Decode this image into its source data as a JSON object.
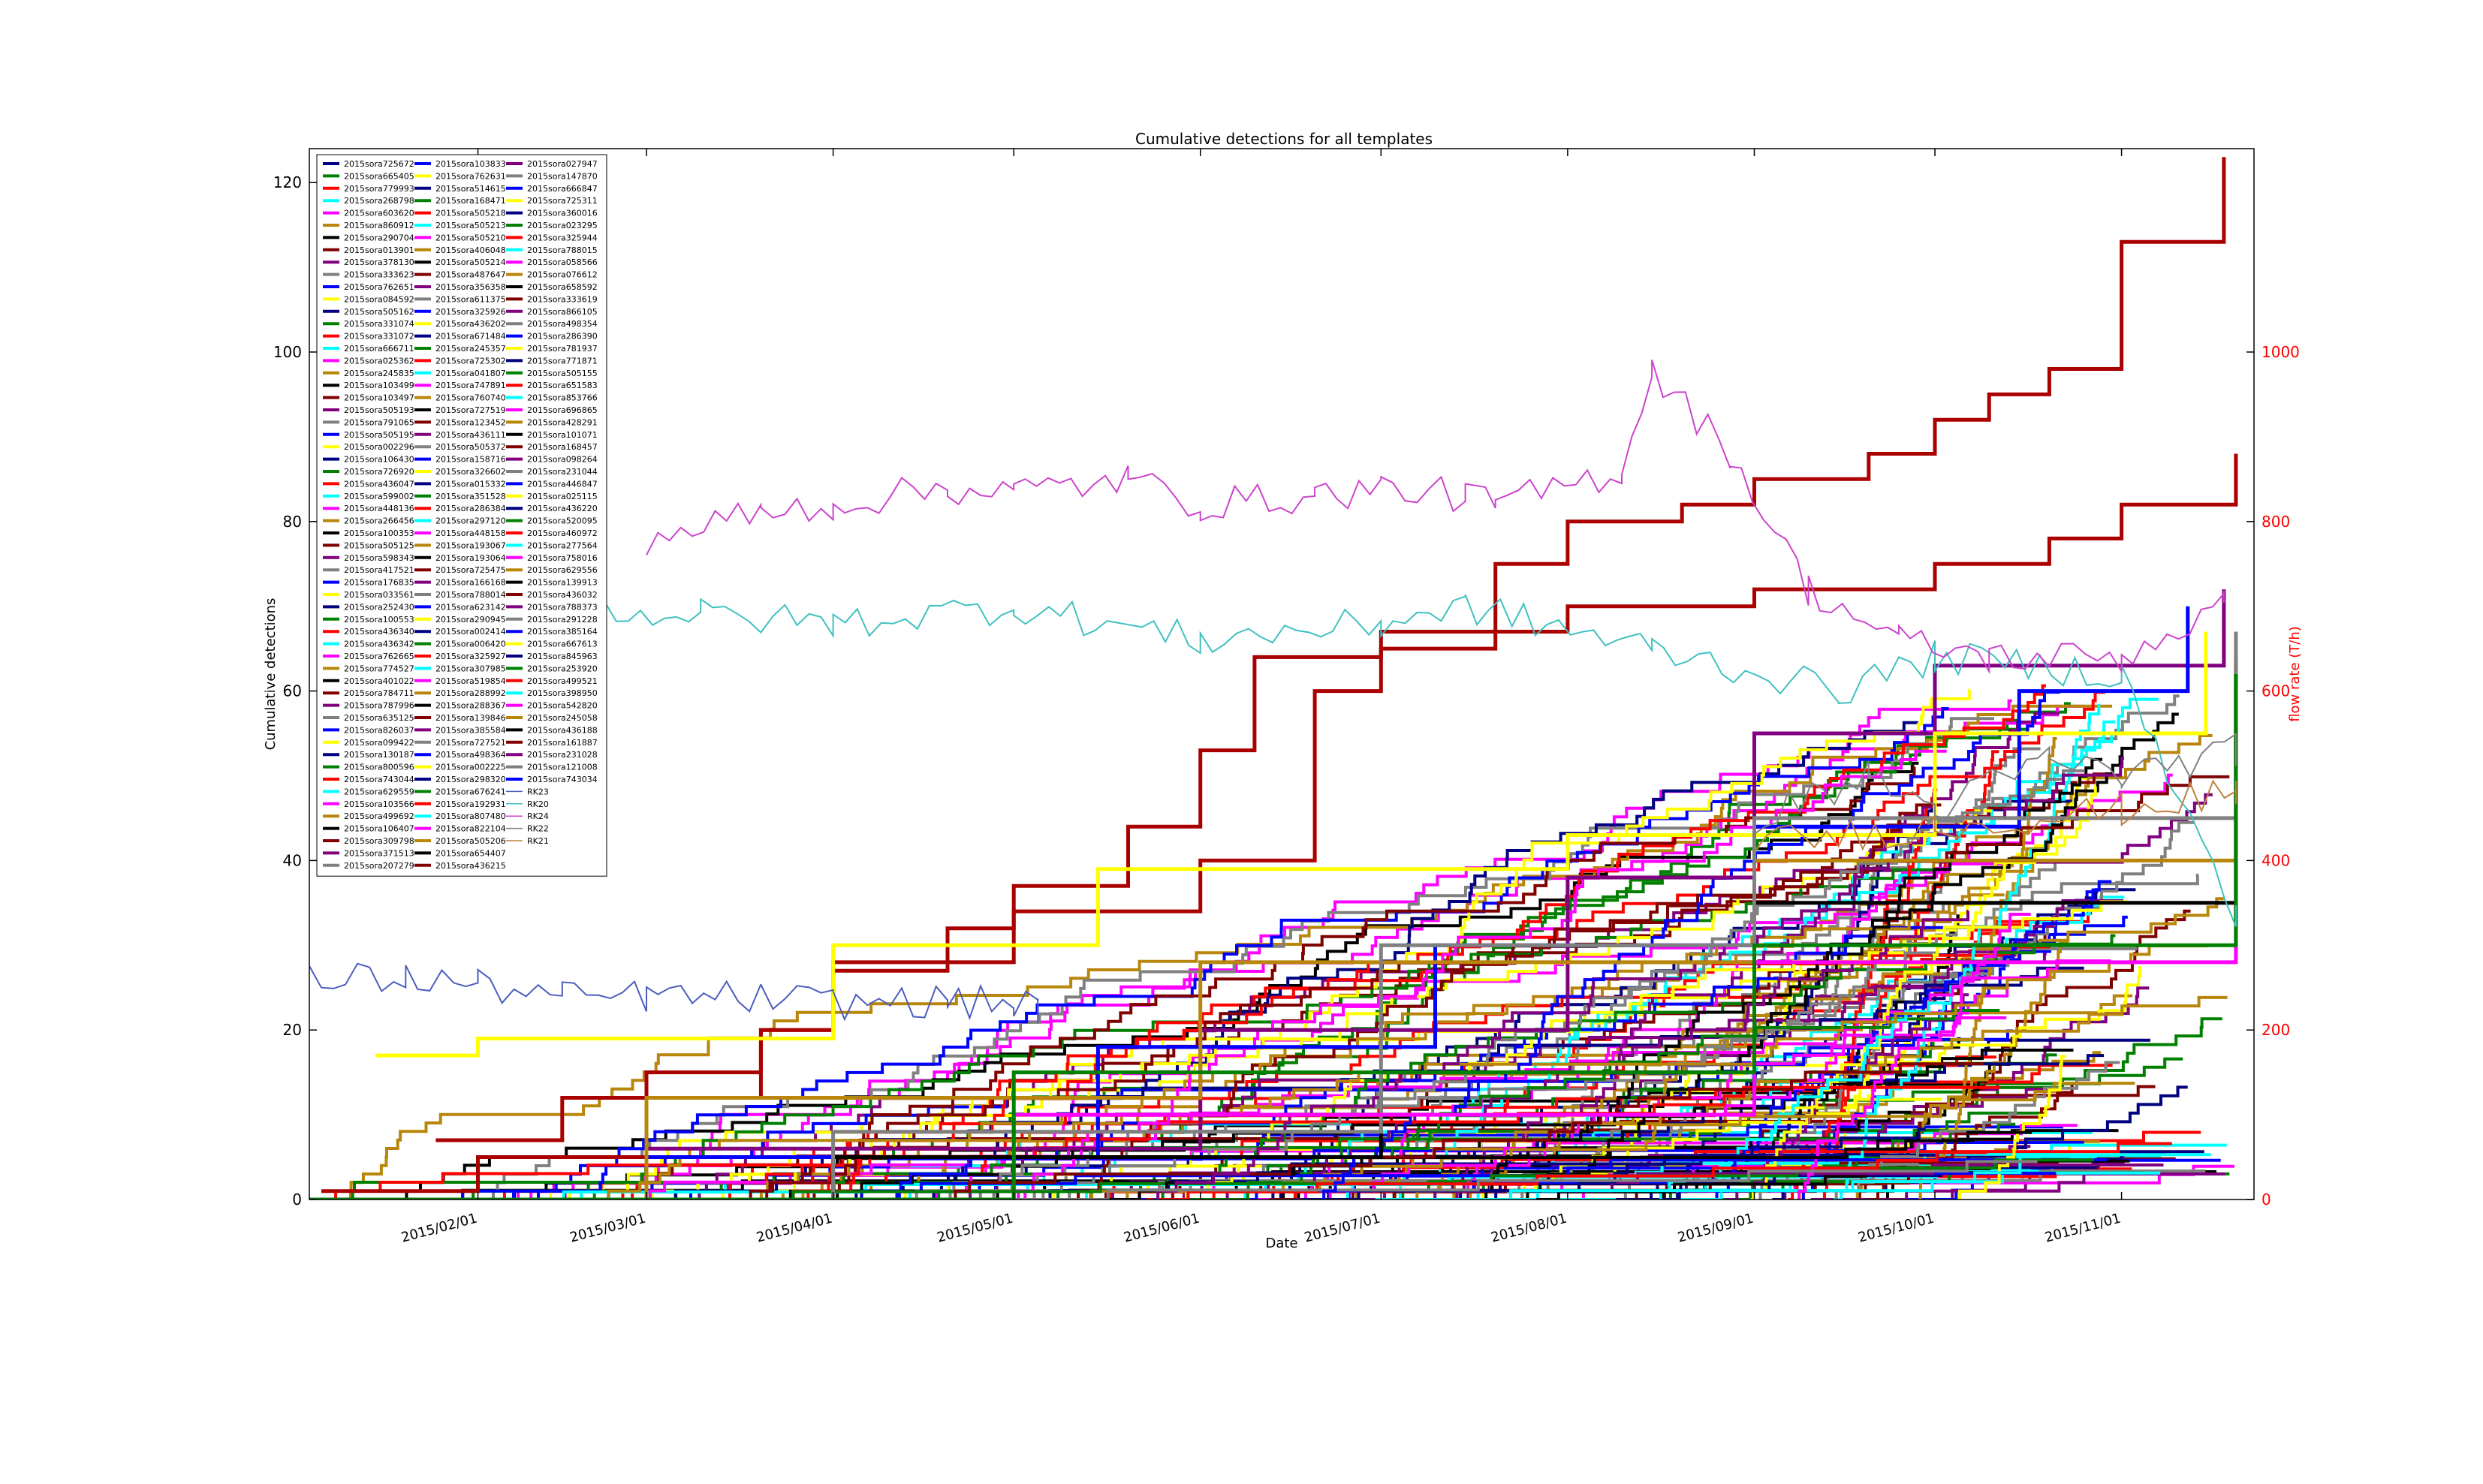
{
  "chart_data": {
    "type": "line",
    "title": "Cumulative detections for all templates",
    "xlabel": "Date",
    "ylabel": "Cumulative detections",
    "ylabel_right": "flow rate (T/h)",
    "x_range": [
      "2015-01-04",
      "2015-11-23"
    ],
    "ylim": [
      0,
      124
    ],
    "ylim_right": [
      0,
      1240
    ],
    "x_ticks": [
      "2015/02/01",
      "2015/03/01",
      "2015/04/01",
      "2015/05/01",
      "2015/06/01",
      "2015/07/01",
      "2015/08/01",
      "2015/09/01",
      "2015/10/01",
      "2015/11/01"
    ],
    "y_ticks": [
      0,
      20,
      40,
      60,
      80,
      100,
      120
    ],
    "y_ticks_right": [
      0,
      200,
      400,
      600,
      800,
      1000
    ],
    "grid": false,
    "legend_position": "top-left",
    "palette": [
      "#000080",
      "#008000",
      "#ff0000",
      "#00ffff",
      "#ff00ff",
      "#b8860b",
      "#000000",
      "#800000",
      "#800080",
      "#808080",
      "#0000ff",
      "#ffff00"
    ],
    "templates": [
      "2015sora725672",
      "2015sora665405",
      "2015sora779993",
      "2015sora268798",
      "2015sora603620",
      "2015sora860912",
      "2015sora290704",
      "2015sora013901",
      "2015sora378130",
      "2015sora333623",
      "2015sora762651",
      "2015sora084592",
      "2015sora505162",
      "2015sora331074",
      "2015sora331072",
      "2015sora666711",
      "2015sora025362",
      "2015sora245835",
      "2015sora103499",
      "2015sora103497",
      "2015sora505193",
      "2015sora791065",
      "2015sora505195",
      "2015sora002296",
      "2015sora106430",
      "2015sora726920",
      "2015sora436047",
      "2015sora599002",
      "2015sora448136",
      "2015sora266456",
      "2015sora100353",
      "2015sora505125",
      "2015sora598343",
      "2015sora417521",
      "2015sora176835",
      "2015sora033561",
      "2015sora252430",
      "2015sora100553",
      "2015sora436340",
      "2015sora436342",
      "2015sora762665",
      "2015sora774527",
      "2015sora401022",
      "2015sora784711",
      "2015sora787996",
      "2015sora635125",
      "2015sora826037",
      "2015sora099422",
      "2015sora130187",
      "2015sora800596",
      "2015sora743044",
      "2015sora629559",
      "2015sora103566",
      "2015sora499692",
      "2015sora106407",
      "2015sora309798",
      "2015sora371513",
      "2015sora207279",
      "2015sora103833",
      "2015sora762631",
      "2015sora514615",
      "2015sora168471",
      "2015sora505218",
      "2015sora505213",
      "2015sora505210",
      "2015sora406048",
      "2015sora505214",
      "2015sora487647",
      "2015sora356358",
      "2015sora611375",
      "2015sora325926",
      "2015sora436202",
      "2015sora671484",
      "2015sora245357",
      "2015sora725302",
      "2015sora041807",
      "2015sora747891",
      "2015sora760740",
      "2015sora727519",
      "2015sora123452",
      "2015sora436111",
      "2015sora505372",
      "2015sora158716",
      "2015sora326602",
      "2015sora015332",
      "2015sora351528",
      "2015sora286384",
      "2015sora297120",
      "2015sora448158",
      "2015sora193067",
      "2015sora193064",
      "2015sora725475",
      "2015sora166168",
      "2015sora788014",
      "2015sora623142",
      "2015sora290945",
      "2015sora002414",
      "2015sora006420",
      "2015sora325927",
      "2015sora307985",
      "2015sora519854",
      "2015sora288992",
      "2015sora288367",
      "2015sora139846",
      "2015sora385584",
      "2015sora727521",
      "2015sora498364",
      "2015sora002225",
      "2015sora298320",
      "2015sora676241",
      "2015sora192931",
      "2015sora807480",
      "2015sora822104",
      "2015sora505206",
      "2015sora654407",
      "2015sora436215",
      "2015sora027947",
      "2015sora147870",
      "2015sora666847",
      "2015sora725311",
      "2015sora360016",
      "2015sora023295",
      "2015sora325944",
      "2015sora788015",
      "2015sora058566",
      "2015sora076612",
      "2015sora658592",
      "2015sora333619",
      "2015sora866105",
      "2015sora498354",
      "2015sora286390",
      "2015sora781937",
      "2015sora771871",
      "2015sora505155",
      "2015sora651583",
      "2015sora853766",
      "2015sora696865",
      "2015sora428291",
      "2015sora101071",
      "2015sora168457",
      "2015sora098264",
      "2015sora231044",
      "2015sora446847",
      "2015sora025115",
      "2015sora436220",
      "2015sora520095",
      "2015sora460972",
      "2015sora277564",
      "2015sora758016",
      "2015sora629556",
      "2015sora139913",
      "2015sora436032",
      "2015sora788373",
      "2015sora291228",
      "2015sora385164",
      "2015sora667613",
      "2015sora845963",
      "2015sora253920",
      "2015sora499521",
      "2015sora398950",
      "2015sora542820",
      "2015sora245058",
      "2015sora436188",
      "2015sora161887",
      "2015sora231028",
      "2015sora121008",
      "2015sora743034"
    ],
    "highlighted_series": [
      {
        "color": "#aa0000",
        "x": [
          "2015-01-25",
          "2015-02-15",
          "2015-03-01",
          "2015-03-20",
          "2015-04-01",
          "2015-04-20",
          "2015-05-01",
          "2015-05-20",
          "2015-06-01",
          "2015-06-10",
          "2015-07-01",
          "2015-07-20",
          "2015-08-01",
          "2015-08-20",
          "2015-09-01",
          "2015-09-20",
          "2015-10-01",
          "2015-10-10",
          "2015-10-20",
          "2015-11-01",
          "2015-11-18"
        ],
        "values": [
          7,
          12,
          15,
          20,
          27,
          32,
          37,
          44,
          53,
          64,
          65,
          75,
          80,
          82,
          85,
          88,
          92,
          95,
          98,
          113,
          123
        ]
      },
      {
        "color": "#aa0000",
        "x": [
          "2015-01-06",
          "2015-02-01",
          "2015-03-01",
          "2015-03-20",
          "2015-04-01",
          "2015-05-01",
          "2015-06-01",
          "2015-06-20",
          "2015-07-01",
          "2015-08-01",
          "2015-09-01",
          "2015-10-01",
          "2015-10-20",
          "2015-11-01",
          "2015-11-20"
        ],
        "values": [
          1,
          5,
          12,
          20,
          28,
          34,
          40,
          60,
          67,
          70,
          72,
          75,
          78,
          82,
          88
        ]
      },
      {
        "color": "#800080",
        "x": [
          "2015-01-04",
          "2015-03-01",
          "2015-06-01",
          "2015-08-01",
          "2015-09-01",
          "2015-10-01",
          "2015-11-18"
        ],
        "values": [
          0,
          6,
          20,
          38,
          55,
          63,
          72
        ]
      },
      {
        "color": "#0000ff",
        "x": [
          "2015-01-04",
          "2015-03-01",
          "2015-05-15",
          "2015-07-10",
          "2015-09-01",
          "2015-10-15",
          "2015-11-12"
        ],
        "values": [
          0,
          5,
          18,
          30,
          44,
          60,
          70
        ]
      },
      {
        "color": "#ffff00",
        "x": [
          "2015-01-15",
          "2015-02-01",
          "2015-04-01",
          "2015-05-15",
          "2015-08-01",
          "2015-10-01",
          "2015-11-15"
        ],
        "values": [
          17,
          19,
          30,
          39,
          43,
          55,
          67
        ]
      },
      {
        "color": "#000000",
        "x": [
          "2015-01-04",
          "2015-04-01",
          "2015-07-01",
          "2015-09-01",
          "2015-11-20"
        ],
        "values": [
          0,
          5,
          15,
          35,
          64
        ]
      },
      {
        "color": "#b8860b",
        "x": [
          "2015-01-04",
          "2015-03-01",
          "2015-06-01",
          "2015-09-01",
          "2015-11-20"
        ],
        "values": [
          0,
          12,
          28,
          40,
          63
        ]
      },
      {
        "color": "#808080",
        "x": [
          "2015-01-04",
          "2015-04-01",
          "2015-07-01",
          "2015-09-01",
          "2015-11-20"
        ],
        "values": [
          0,
          8,
          30,
          45,
          67
        ]
      },
      {
        "color": "#ff00ff",
        "x": [
          "2015-01-04",
          "2015-05-01",
          "2015-09-01",
          "2015-11-20"
        ],
        "values": [
          0,
          10,
          28,
          60
        ]
      },
      {
        "color": "#008000",
        "x": [
          "2015-01-04",
          "2015-05-01",
          "2015-09-01",
          "2015-11-20"
        ],
        "values": [
          0,
          15,
          30,
          62
        ]
      }
    ],
    "flow_series": [
      {
        "name": "RK23",
        "color": "#4b5dbd",
        "x": [
          "2015-01-04",
          "2015-01-20",
          "2015-02-01",
          "2015-02-15",
          "2015-03-01",
          "2015-03-20",
          "2015-04-01",
          "2015-04-20",
          "2015-05-01",
          "2015-05-05"
        ],
        "values": [
          258,
          262,
          254,
          238,
          240,
          238,
          232,
          234,
          230,
          226
        ]
      },
      {
        "name": "RK20",
        "color": "#40c0c0",
        "x": [
          "2015-01-25",
          "2015-02-10",
          "2015-03-10",
          "2015-04-01",
          "2015-05-01",
          "2015-06-01",
          "2015-07-01",
          "2015-07-15",
          "2015-08-15",
          "2015-09-15",
          "2015-10-01",
          "2015-11-01",
          "2015-11-20"
        ],
        "values": [
          680,
          700,
          690,
          680,
          700,
          660,
          680,
          700,
          650,
          600,
          640,
          620,
          330
        ]
      },
      {
        "name": "RK24",
        "color": "#cc44cc",
        "x": [
          "2015-03-01",
          "2015-03-20",
          "2015-04-01",
          "2015-04-20",
          "2015-05-01",
          "2015-05-20",
          "2015-06-01",
          "2015-06-20",
          "2015-07-01",
          "2015-07-15",
          "2015-07-20",
          "2015-08-10",
          "2015-08-15",
          "2015-08-28",
          "2015-09-10",
          "2015-09-25",
          "2015-10-10",
          "2015-11-01",
          "2015-11-18"
        ],
        "values": [
          780,
          810,
          820,
          840,
          835,
          850,
          820,
          830,
          840,
          830,
          820,
          860,
          980,
          880,
          720,
          660,
          640,
          640,
          700
        ]
      },
      {
        "name": "RK22",
        "color": "#808080",
        "x": [
          "2015-09-01",
          "2015-09-20",
          "2015-10-01",
          "2015-10-20",
          "2015-11-01",
          "2015-11-20"
        ],
        "values": [
          450,
          500,
          460,
          520,
          500,
          530
        ]
      },
      {
        "name": "RK21",
        "color": "#c08040",
        "x": [
          "2015-09-01",
          "2015-10-01",
          "2015-11-01",
          "2015-11-20"
        ],
        "values": [
          420,
          440,
          460,
          480
        ]
      }
    ],
    "legend_col1_series": [
      "2015sora725672",
      "2015sora665405",
      "2015sora779993",
      "2015sora268798",
      "2015sora603620",
      "2015sora860912",
      "2015sora290704",
      "2015sora013901",
      "2015sora378130",
      "2015sora333623",
      "2015sora762651",
      "2015sora084592",
      "2015sora505162",
      "2015sora331074",
      "2015sora331072",
      "2015sora666711",
      "2015sora025362",
      "2015sora245835",
      "2015sora103499",
      "2015sora103497",
      "2015sora505193",
      "2015sora791065",
      "2015sora505195",
      "2015sora002296",
      "2015sora106430",
      "2015sora726920",
      "2015sora436047",
      "2015sora599002",
      "2015sora448136",
      "2015sora266456",
      "2015sora100353",
      "2015sora505125",
      "2015sora598343",
      "2015sora417521",
      "2015sora176835",
      "2015sora033561",
      "2015sora252430",
      "2015sora100553",
      "2015sora436340",
      "2015sora436342",
      "2015sora762665",
      "2015sora774527",
      "2015sora401022",
      "2015sora784711",
      "2015sora787996",
      "2015sora635125",
      "2015sora826037",
      "2015sora099422",
      "2015sora130187",
      "2015sora800596",
      "2015sora743044",
      "2015sora629559",
      "2015sora103566",
      "2015sora499692",
      "2015sora106407",
      "2015sora309798",
      "2015sora371513",
      "2015sora207279"
    ]
  }
}
